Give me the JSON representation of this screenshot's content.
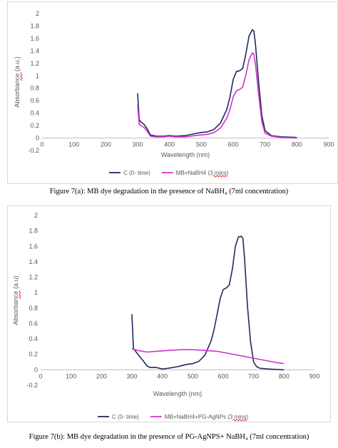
{
  "figure_a": {
    "caption": "Figure 7(a): MB dye degradation in the presence of NaBH₄ (7ml concentration)"
  },
  "figure_b": {
    "caption": "Figure 7(b): MB dye degradation in the presence of PG-AgNPS+ NaBH₄ (7ml concentration)"
  },
  "colors": {
    "control": "#1f2a5c",
    "treated": "#cc33cc",
    "axis": "#bfbfbf",
    "border": "#d9d9d9"
  },
  "chart_data": [
    {
      "type": "line",
      "xlabel": "Wavelength (nm)",
      "ylabel": "Absorbance (a.u.)",
      "xlim": [
        0,
        900
      ],
      "ylim": [
        -0.2,
        2
      ],
      "x_ticks": [
        0,
        100,
        200,
        300,
        400,
        500,
        600,
        700,
        800,
        900
      ],
      "y_ticks": [
        -0.2,
        0,
        0.2,
        0.4,
        0.6,
        0.8,
        1,
        1.2,
        1.4,
        1.6,
        1.8,
        2
      ],
      "grid": false,
      "legend_position": "bottom",
      "series": [
        {
          "name": "C (0- time)",
          "x": [
            300,
            305,
            310,
            320,
            330,
            340,
            360,
            380,
            400,
            420,
            450,
            480,
            500,
            520,
            540,
            560,
            580,
            590,
            600,
            610,
            620,
            630,
            640,
            650,
            660,
            665,
            670,
            680,
            690,
            700,
            720,
            750,
            800
          ],
          "y": [
            0.72,
            0.3,
            0.26,
            0.22,
            0.15,
            0.05,
            0.03,
            0.03,
            0.04,
            0.03,
            0.04,
            0.07,
            0.09,
            0.1,
            0.14,
            0.24,
            0.46,
            0.66,
            0.94,
            1.07,
            1.08,
            1.12,
            1.36,
            1.64,
            1.74,
            1.72,
            1.5,
            0.9,
            0.36,
            0.12,
            0.04,
            0.02,
            0.01
          ]
        },
        {
          "name": "MB+NaBH4 (3 mins)",
          "x": [
            300,
            305,
            310,
            320,
            330,
            340,
            360,
            380,
            400,
            420,
            450,
            480,
            500,
            520,
            540,
            560,
            580,
            590,
            600,
            610,
            620,
            630,
            640,
            650,
            660,
            665,
            670,
            680,
            690,
            700,
            720,
            750,
            800
          ],
          "y": [
            0.54,
            0.22,
            0.2,
            0.17,
            0.11,
            0.03,
            0.02,
            0.02,
            0.03,
            0.02,
            0.02,
            0.04,
            0.05,
            0.06,
            0.09,
            0.16,
            0.32,
            0.46,
            0.66,
            0.76,
            0.78,
            0.82,
            1.02,
            1.26,
            1.37,
            1.35,
            1.18,
            0.7,
            0.26,
            0.08,
            0.03,
            0.01,
            0.0
          ]
        }
      ]
    },
    {
      "type": "line",
      "xlabel": "Wavelength (nm)",
      "ylabel": "Absorbance (a.u)",
      "xlim": [
        0,
        900
      ],
      "ylim": [
        -0.2,
        2
      ],
      "x_ticks": [
        0,
        100,
        200,
        300,
        400,
        500,
        600,
        700,
        800,
        900
      ],
      "y_ticks": [
        -0.2,
        0,
        0.2,
        0.4,
        0.6,
        0.8,
        1,
        1.2,
        1.4,
        1.6,
        1.8,
        2
      ],
      "grid": false,
      "legend_position": "bottom",
      "series": [
        {
          "name": "C (0- time)",
          "x": [
            300,
            305,
            310,
            320,
            330,
            340,
            350,
            360,
            380,
            400,
            420,
            450,
            480,
            500,
            520,
            540,
            560,
            570,
            580,
            590,
            600,
            610,
            620,
            630,
            640,
            650,
            660,
            665,
            670,
            680,
            690,
            700,
            710,
            720,
            750,
            800
          ],
          "y": [
            0.72,
            0.28,
            0.25,
            0.2,
            0.15,
            0.1,
            0.05,
            0.03,
            0.03,
            0.01,
            0.02,
            0.04,
            0.07,
            0.08,
            0.11,
            0.19,
            0.37,
            0.52,
            0.72,
            0.92,
            1.04,
            1.06,
            1.1,
            1.3,
            1.6,
            1.72,
            1.73,
            1.7,
            1.45,
            0.82,
            0.36,
            0.1,
            0.04,
            0.02,
            0.01,
            0.0
          ]
        },
        {
          "name": "MB+NaBH4+PG-AgNPs (3 mins)",
          "x": [
            300,
            320,
            350,
            380,
            420,
            460,
            500,
            540,
            580,
            620,
            660,
            700,
            740,
            780,
            800
          ],
          "y": [
            0.27,
            0.25,
            0.23,
            0.24,
            0.25,
            0.26,
            0.26,
            0.25,
            0.24,
            0.21,
            0.18,
            0.15,
            0.12,
            0.09,
            0.08
          ]
        }
      ]
    }
  ]
}
